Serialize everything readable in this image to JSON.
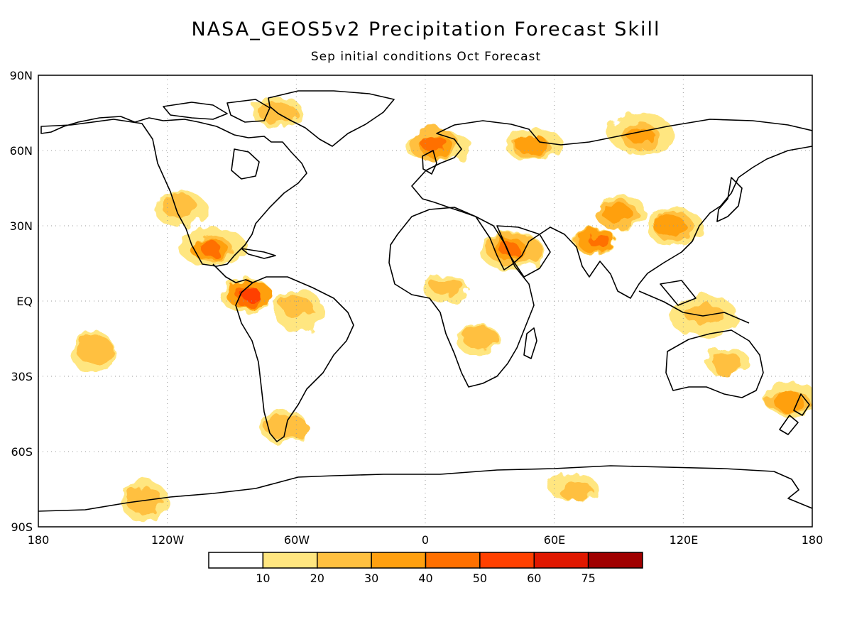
{
  "title": "NASA_GEOS5v2 Precipitation Forecast Skill",
  "subtitle": "Sep initial conditions  Oct Forecast",
  "map": {
    "lat_labels": [
      "90N",
      "60N",
      "30N",
      "EQ",
      "30S",
      "60S",
      "90S"
    ],
    "lon_labels": [
      "180",
      "120W",
      "60W",
      "0",
      "60E",
      "120E",
      "180"
    ]
  },
  "legend": {
    "levels": [
      "10",
      "20",
      "30",
      "40",
      "50",
      "60",
      "75"
    ],
    "colors": [
      "#ffffff",
      "#ffe680",
      "#ffc040",
      "#ffa010",
      "#ff7000",
      "#ff4000",
      "#e01800",
      "#a00000"
    ]
  },
  "skill_regions": [
    {
      "region": "Greenland/Arctic Canada",
      "lon": -70,
      "lat": 75,
      "level": 2
    },
    {
      "region": "Western US",
      "lon": -115,
      "lat": 37,
      "level": 2
    },
    {
      "region": "Mexico west coast",
      "lon": -100,
      "lat": 21,
      "level": 4
    },
    {
      "region": "Eastern equatorial Pacific",
      "lon": -82,
      "lat": 2,
      "level": 5
    },
    {
      "region": "Central Pacific",
      "lon": -155,
      "lat": -20,
      "level": 2
    },
    {
      "region": "Northern South America",
      "lon": -60,
      "lat": -3,
      "level": 2
    },
    {
      "region": "Southern South America",
      "lon": -65,
      "lat": -50,
      "level": 2
    },
    {
      "region": "Scandinavia",
      "lon": 5,
      "lat": 62,
      "level": 4
    },
    {
      "region": "Western Russia",
      "lon": 50,
      "lat": 62,
      "level": 3
    },
    {
      "region": "Siberia",
      "lon": 100,
      "lat": 66,
      "level": 3
    },
    {
      "region": "Middle East",
      "lon": 40,
      "lat": 20,
      "level": 4
    },
    {
      "region": "Sahel",
      "lon": 10,
      "lat": 5,
      "level": 2
    },
    {
      "region": "India",
      "lon": 80,
      "lat": 24,
      "level": 4
    },
    {
      "region": "Tibetan Plateau",
      "lon": 90,
      "lat": 35,
      "level": 3
    },
    {
      "region": "East China",
      "lon": 115,
      "lat": 30,
      "level": 3
    },
    {
      "region": "Maritime Continent",
      "lon": 130,
      "lat": -5,
      "level": 2
    },
    {
      "region": "Australia",
      "lon": 140,
      "lat": -25,
      "level": 2
    },
    {
      "region": "New Zealand region",
      "lon": 170,
      "lat": -40,
      "level": 3
    },
    {
      "region": "Southern Africa",
      "lon": 25,
      "lat": -15,
      "level": 2
    },
    {
      "region": "East Antarctica",
      "lon": 70,
      "lat": -75,
      "level": 2
    },
    {
      "region": "West Antarctica",
      "lon": -130,
      "lat": -80,
      "level": 2
    }
  ]
}
